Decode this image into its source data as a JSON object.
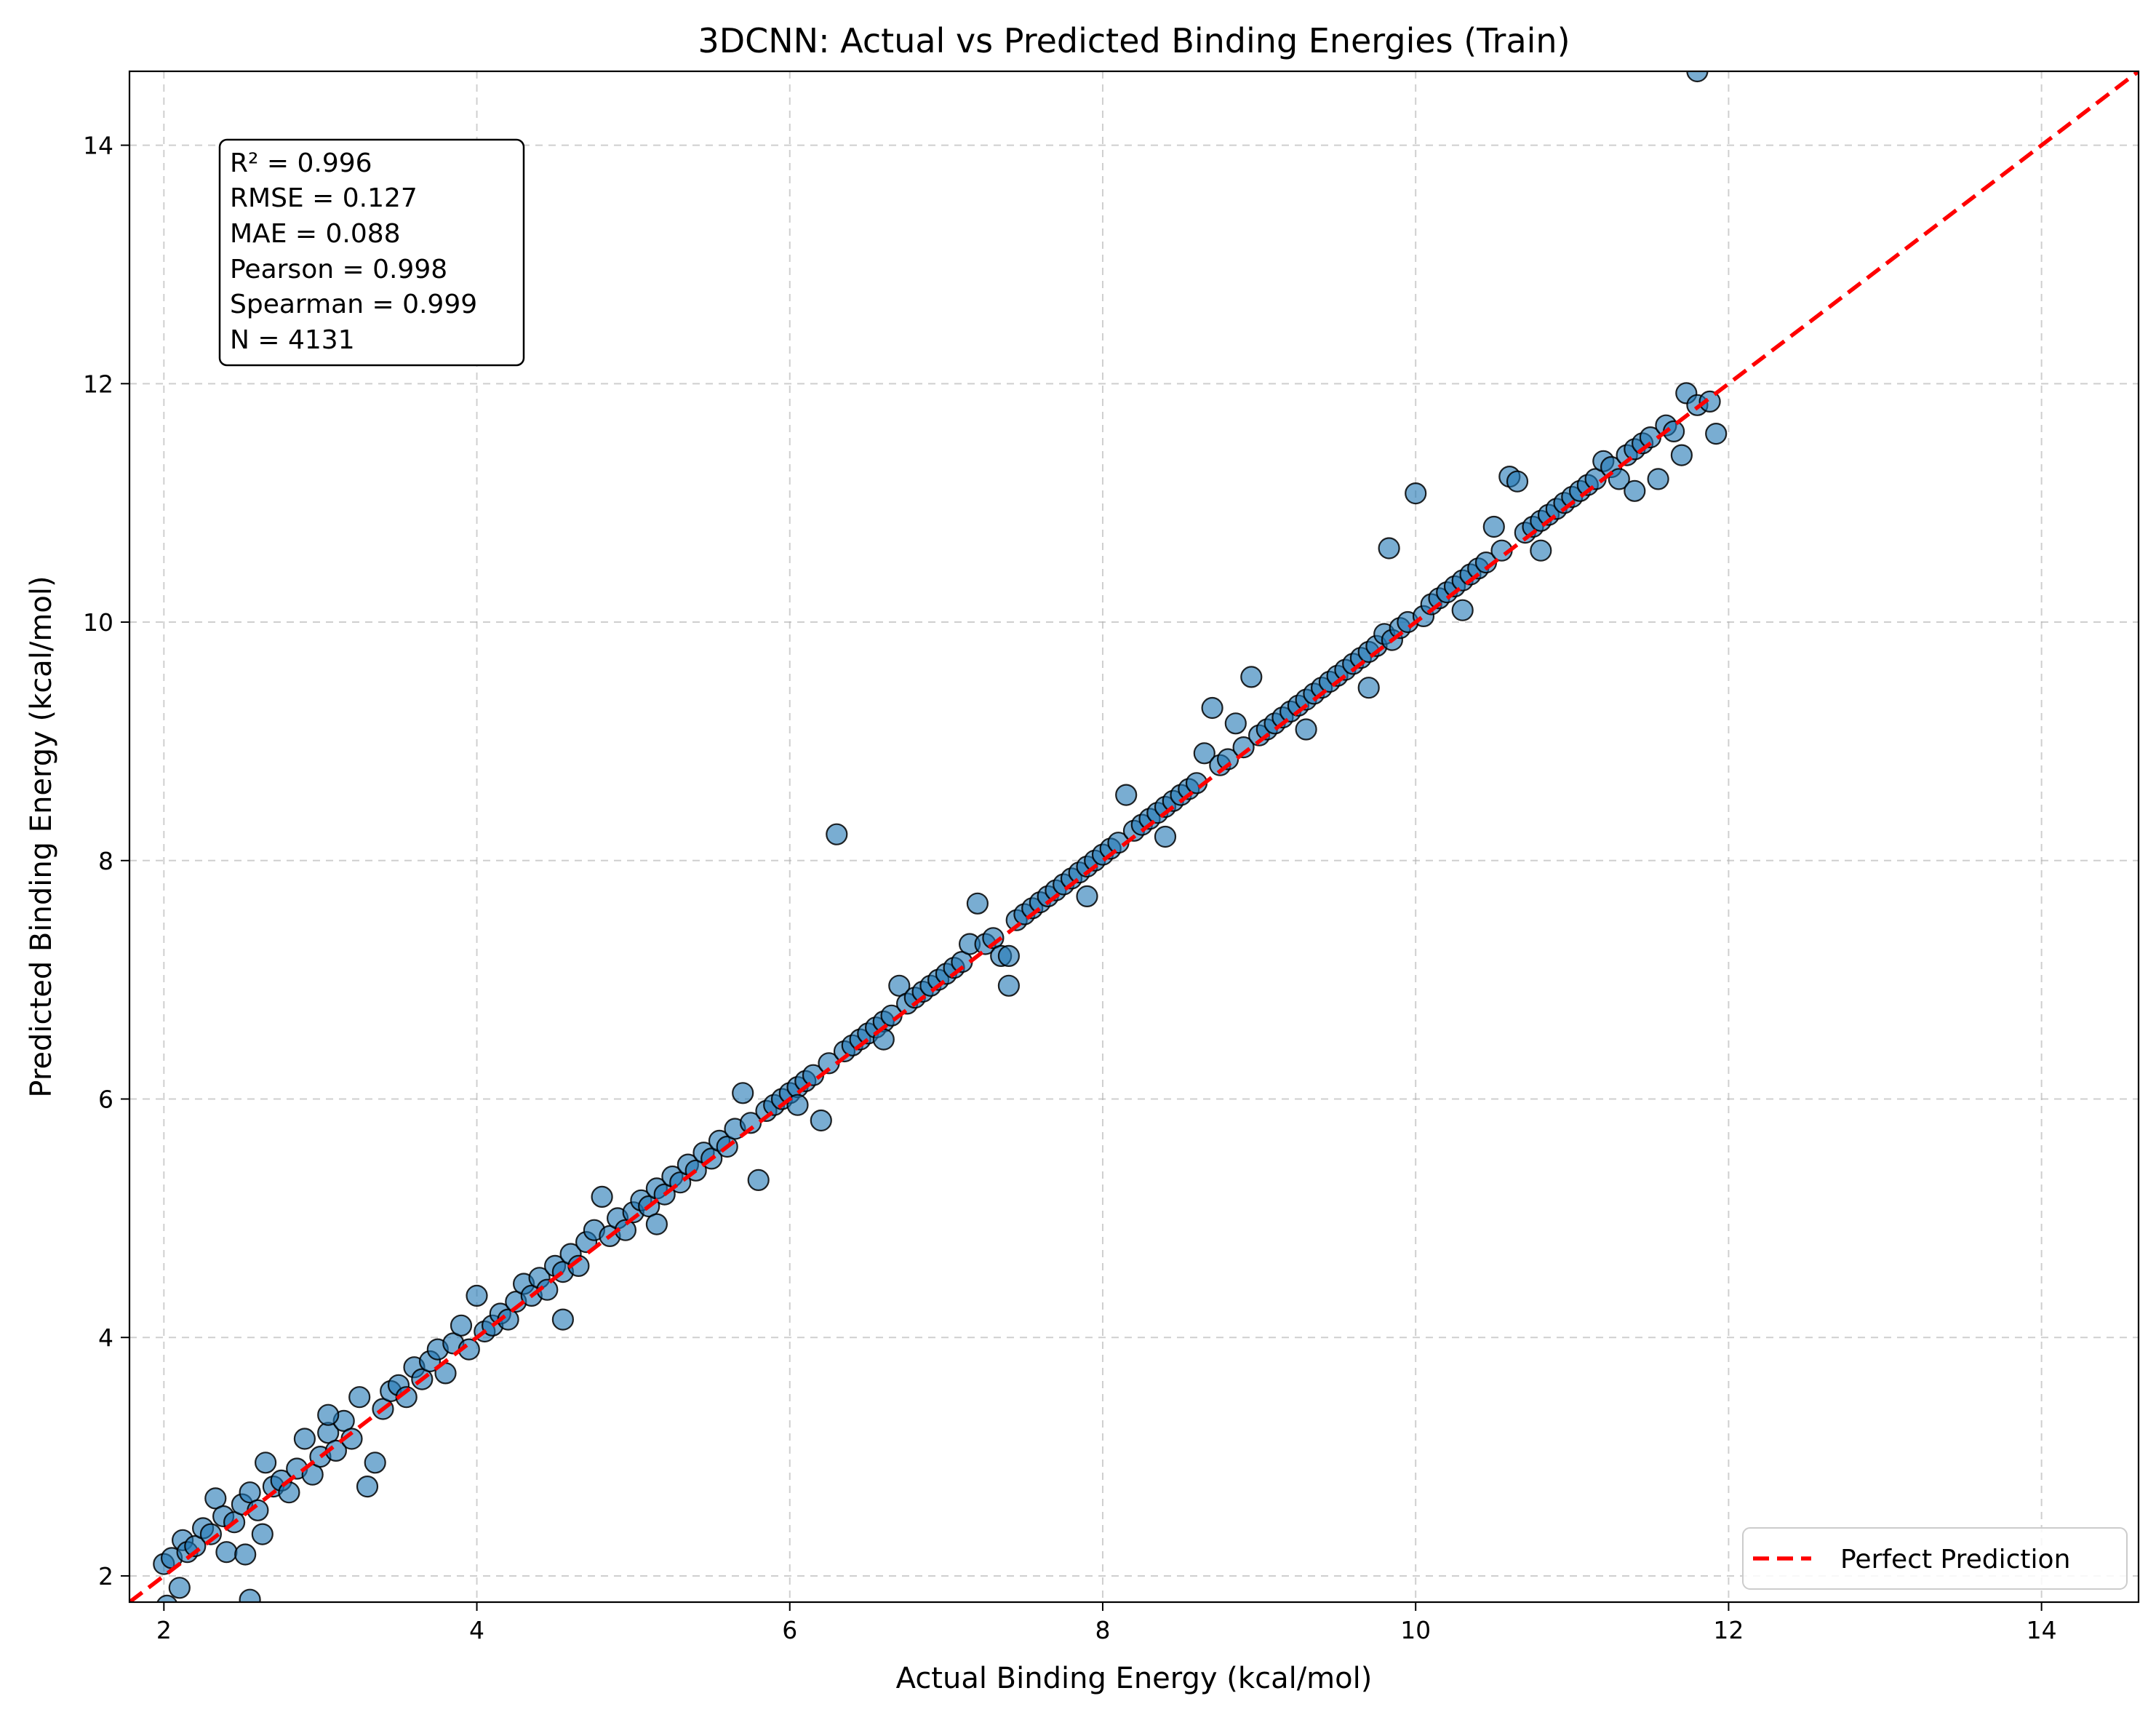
{
  "chart_data": {
    "type": "scatter",
    "title": "3DCNN: Actual vs Predicted Binding Energies (Train)",
    "xlabel": "Actual Binding Energy (kcal/mol)",
    "ylabel": "Predicted Binding Energy (kcal/mol)",
    "xlim": [
      1.78,
      14.62
    ],
    "ylim": [
      1.78,
      14.62
    ],
    "xticks": [
      2,
      4,
      6,
      8,
      10,
      12,
      14
    ],
    "yticks": [
      2,
      4,
      6,
      8,
      10,
      12,
      14
    ],
    "grid": true,
    "legend": {
      "placement": "lower-right",
      "entries": [
        "Perfect Prediction"
      ]
    },
    "stats": [
      "R² = 0.996",
      "RMSE = 0.127",
      "MAE = 0.088",
      "Pearson = 0.998",
      "Spearman = 0.999",
      "N = 4131"
    ],
    "colors": {
      "points": "#1f77b4",
      "point_edge": "#000000",
      "line": "#ff0000",
      "grid": "#b0b0b0"
    },
    "reference_line": {
      "name": "Perfect Prediction",
      "from": [
        1.78,
        1.78
      ],
      "to": [
        14.62,
        14.62
      ]
    },
    "series": [
      {
        "points": [
          [
            2.0,
            2.1
          ],
          [
            2.02,
            1.75
          ],
          [
            2.05,
            2.15
          ],
          [
            2.1,
            1.9
          ],
          [
            2.12,
            2.3
          ],
          [
            2.15,
            2.2
          ],
          [
            2.2,
            2.25
          ],
          [
            2.25,
            2.4
          ],
          [
            2.3,
            2.35
          ],
          [
            2.33,
            2.65
          ],
          [
            2.38,
            2.5
          ],
          [
            2.4,
            2.2
          ],
          [
            2.45,
            2.45
          ],
          [
            2.5,
            2.6
          ],
          [
            2.52,
            2.18
          ],
          [
            2.55,
            2.7
          ],
          [
            2.6,
            2.55
          ],
          [
            2.63,
            2.35
          ],
          [
            2.65,
            2.95
          ],
          [
            2.7,
            2.75
          ],
          [
            2.75,
            2.8
          ],
          [
            2.8,
            2.7
          ],
          [
            2.85,
            2.9
          ],
          [
            2.9,
            3.15
          ],
          [
            2.95,
            2.85
          ],
          [
            3.0,
            3.0
          ],
          [
            3.05,
            3.2
          ],
          [
            3.1,
            3.05
          ],
          [
            3.15,
            3.3
          ],
          [
            3.2,
            3.15
          ],
          [
            3.25,
            3.5
          ],
          [
            3.3,
            2.75
          ],
          [
            3.35,
            2.95
          ],
          [
            3.4,
            3.4
          ],
          [
            3.45,
            3.55
          ],
          [
            3.5,
            3.6
          ],
          [
            3.55,
            3.5
          ],
          [
            3.6,
            3.75
          ],
          [
            3.65,
            3.65
          ],
          [
            3.7,
            3.8
          ],
          [
            3.75,
            3.9
          ],
          [
            3.8,
            3.7
          ],
          [
            3.85,
            3.95
          ],
          [
            3.9,
            4.1
          ],
          [
            3.95,
            3.9
          ],
          [
            4.0,
            4.35
          ],
          [
            4.05,
            4.05
          ],
          [
            4.1,
            4.1
          ],
          [
            4.15,
            4.2
          ],
          [
            4.2,
            4.15
          ],
          [
            4.25,
            4.3
          ],
          [
            4.3,
            4.45
          ],
          [
            4.35,
            4.35
          ],
          [
            4.4,
            4.5
          ],
          [
            4.45,
            4.4
          ],
          [
            4.5,
            4.6
          ],
          [
            4.55,
            4.55
          ],
          [
            4.6,
            4.7
          ],
          [
            4.65,
            4.6
          ],
          [
            4.7,
            4.8
          ],
          [
            4.75,
            4.9
          ],
          [
            4.8,
            5.18
          ],
          [
            4.85,
            4.85
          ],
          [
            4.9,
            5.0
          ],
          [
            4.95,
            4.9
          ],
          [
            5.0,
            5.05
          ],
          [
            5.05,
            5.15
          ],
          [
            5.1,
            5.1
          ],
          [
            5.15,
            5.25
          ],
          [
            5.2,
            5.2
          ],
          [
            5.25,
            5.35
          ],
          [
            5.3,
            5.3
          ],
          [
            5.35,
            5.45
          ],
          [
            5.4,
            5.4
          ],
          [
            5.45,
            5.55
          ],
          [
            5.5,
            5.5
          ],
          [
            5.55,
            5.65
          ],
          [
            5.6,
            5.6
          ],
          [
            5.65,
            5.75
          ],
          [
            5.7,
            6.05
          ],
          [
            5.75,
            5.8
          ],
          [
            5.8,
            5.32
          ],
          [
            5.85,
            5.9
          ],
          [
            5.9,
            5.95
          ],
          [
            5.95,
            6.0
          ],
          [
            6.0,
            6.05
          ],
          [
            6.05,
            6.1
          ],
          [
            6.1,
            6.15
          ],
          [
            6.15,
            6.2
          ],
          [
            6.2,
            5.82
          ],
          [
            6.25,
            6.3
          ],
          [
            6.3,
            8.22
          ],
          [
            6.35,
            6.4
          ],
          [
            6.4,
            6.45
          ],
          [
            6.45,
            6.5
          ],
          [
            6.5,
            6.55
          ],
          [
            6.55,
            6.6
          ],
          [
            6.6,
            6.65
          ],
          [
            6.65,
            6.7
          ],
          [
            6.7,
            6.95
          ],
          [
            6.75,
            6.8
          ],
          [
            6.8,
            6.85
          ],
          [
            6.85,
            6.9
          ],
          [
            6.9,
            6.95
          ],
          [
            6.95,
            7.0
          ],
          [
            7.0,
            7.05
          ],
          [
            7.05,
            7.1
          ],
          [
            7.1,
            7.15
          ],
          [
            7.15,
            7.3
          ],
          [
            7.2,
            7.64
          ],
          [
            7.25,
            7.3
          ],
          [
            7.3,
            7.35
          ],
          [
            7.35,
            7.2
          ],
          [
            7.4,
            6.95
          ],
          [
            7.45,
            7.5
          ],
          [
            7.5,
            7.55
          ],
          [
            7.55,
            7.6
          ],
          [
            7.6,
            7.65
          ],
          [
            7.65,
            7.7
          ],
          [
            7.7,
            7.75
          ],
          [
            7.75,
            7.8
          ],
          [
            7.8,
            7.85
          ],
          [
            7.85,
            7.9
          ],
          [
            7.9,
            7.95
          ],
          [
            7.95,
            8.0
          ],
          [
            8.0,
            8.05
          ],
          [
            8.05,
            8.1
          ],
          [
            8.1,
            8.15
          ],
          [
            8.15,
            8.55
          ],
          [
            8.2,
            8.25
          ],
          [
            8.25,
            8.3
          ],
          [
            8.3,
            8.35
          ],
          [
            8.35,
            8.4
          ],
          [
            8.4,
            8.45
          ],
          [
            8.45,
            8.5
          ],
          [
            8.5,
            8.55
          ],
          [
            8.55,
            8.6
          ],
          [
            8.6,
            8.65
          ],
          [
            8.65,
            8.9
          ],
          [
            8.7,
            9.28
          ],
          [
            8.75,
            8.8
          ],
          [
            8.8,
            8.85
          ],
          [
            8.85,
            9.15
          ],
          [
            8.9,
            8.95
          ],
          [
            8.95,
            9.54
          ],
          [
            9.0,
            9.05
          ],
          [
            9.05,
            9.1
          ],
          [
            9.1,
            9.15
          ],
          [
            9.15,
            9.2
          ],
          [
            9.2,
            9.25
          ],
          [
            9.25,
            9.3
          ],
          [
            9.3,
            9.35
          ],
          [
            9.35,
            9.4
          ],
          [
            9.4,
            9.45
          ],
          [
            9.45,
            9.5
          ],
          [
            9.5,
            9.55
          ],
          [
            9.55,
            9.6
          ],
          [
            9.6,
            9.65
          ],
          [
            9.65,
            9.7
          ],
          [
            9.7,
            9.75
          ],
          [
            9.75,
            9.8
          ],
          [
            9.8,
            9.9
          ],
          [
            9.83,
            10.62
          ],
          [
            9.85,
            9.85
          ],
          [
            9.9,
            9.95
          ],
          [
            9.95,
            10.0
          ],
          [
            10.0,
            11.08
          ],
          [
            10.05,
            10.05
          ],
          [
            10.1,
            10.15
          ],
          [
            10.15,
            10.2
          ],
          [
            10.2,
            10.25
          ],
          [
            10.25,
            10.3
          ],
          [
            10.3,
            10.35
          ],
          [
            10.35,
            10.4
          ],
          [
            10.4,
            10.45
          ],
          [
            10.45,
            10.5
          ],
          [
            10.5,
            10.8
          ],
          [
            10.55,
            10.6
          ],
          [
            10.6,
            11.22
          ],
          [
            10.65,
            11.18
          ],
          [
            10.7,
            10.75
          ],
          [
            10.75,
            10.8
          ],
          [
            10.8,
            10.85
          ],
          [
            10.85,
            10.9
          ],
          [
            10.9,
            10.95
          ],
          [
            10.95,
            11.0
          ],
          [
            11.0,
            11.05
          ],
          [
            11.05,
            11.1
          ],
          [
            11.1,
            11.15
          ],
          [
            11.15,
            11.2
          ],
          [
            11.2,
            11.35
          ],
          [
            11.25,
            11.3
          ],
          [
            11.3,
            11.2
          ],
          [
            11.35,
            11.4
          ],
          [
            11.4,
            11.45
          ],
          [
            11.45,
            11.5
          ],
          [
            11.5,
            11.55
          ],
          [
            11.55,
            11.2
          ],
          [
            11.6,
            11.65
          ],
          [
            11.65,
            11.6
          ],
          [
            11.7,
            11.4
          ],
          [
            11.73,
            11.92
          ],
          [
            11.8,
            11.82
          ],
          [
            11.88,
            11.85
          ],
          [
            11.92,
            11.58
          ],
          [
            11.8,
            14.62
          ],
          [
            2.55,
            1.8
          ],
          [
            3.05,
            3.35
          ],
          [
            4.55,
            4.15
          ],
          [
            5.15,
            4.95
          ],
          [
            6.05,
            5.95
          ],
          [
            6.6,
            6.5
          ],
          [
            7.4,
            7.2
          ],
          [
            7.9,
            7.7
          ],
          [
            8.4,
            8.2
          ],
          [
            9.3,
            9.1
          ],
          [
            9.7,
            9.45
          ],
          [
            10.3,
            10.1
          ],
          [
            10.8,
            10.6
          ],
          [
            11.4,
            11.1
          ]
        ]
      }
    ]
  }
}
